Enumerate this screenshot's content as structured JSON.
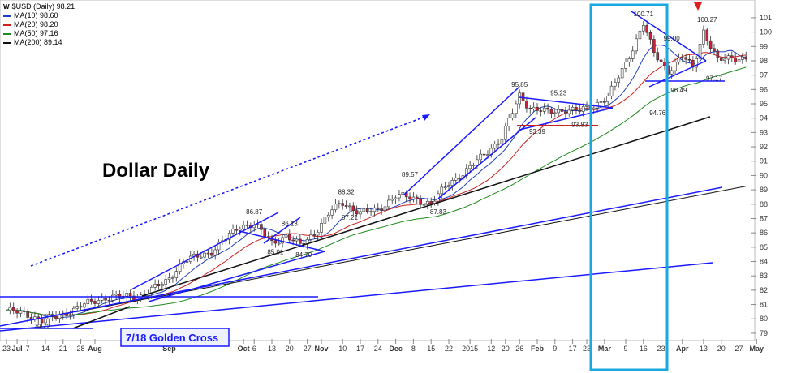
{
  "chart_data": {
    "type": "candlestick",
    "symbol_label": "$USD (Daily) 98.21",
    "title": "Dollar Daily",
    "legend": [
      {
        "name": "MA(10) 98.60",
        "color": "#1f3fbf"
      },
      {
        "name": "MA(20) 98.20",
        "color": "#cc2222"
      },
      {
        "name": "MA(50) 97.16",
        "color": "#1f8a1f"
      },
      {
        "name": "MA(200) 89.14",
        "color": "#111111"
      }
    ],
    "y_ticks": [
      79,
      80,
      81,
      82,
      83,
      84,
      85,
      86,
      87,
      88,
      89,
      90,
      91,
      92,
      93,
      94,
      95,
      96,
      97,
      98,
      99,
      100,
      101
    ],
    "ylim": [
      78.6,
      101.9
    ],
    "x_ticks": [
      {
        "label": "23",
        "i": 0
      },
      {
        "label": "Jul",
        "i": 3
      },
      {
        "label": "7",
        "i": 6
      },
      {
        "label": "14",
        "i": 11
      },
      {
        "label": "21",
        "i": 16
      },
      {
        "label": "28",
        "i": 21
      },
      {
        "label": "Aug",
        "i": 25
      },
      {
        "label": "Sep",
        "i": 46
      },
      {
        "label": "Oct",
        "i": 67
      },
      {
        "label": "6",
        "i": 70
      },
      {
        "label": "13",
        "i": 75
      },
      {
        "label": "20",
        "i": 80
      },
      {
        "label": "27",
        "i": 85
      },
      {
        "label": "Nov",
        "i": 89
      },
      {
        "label": "10",
        "i": 95
      },
      {
        "label": "17",
        "i": 100
      },
      {
        "label": "24",
        "i": 105
      },
      {
        "label": "Dec",
        "i": 110
      },
      {
        "label": "8",
        "i": 115
      },
      {
        "label": "15",
        "i": 120
      },
      {
        "label": "22",
        "i": 125
      },
      {
        "label": "2015",
        "i": 131
      },
      {
        "label": "12",
        "i": 137
      },
      {
        "label": "20",
        "i": 141
      },
      {
        "label": "26",
        "i": 145
      },
      {
        "label": "Feb",
        "i": 150
      },
      {
        "label": "9",
        "i": 155
      },
      {
        "label": "17",
        "i": 160
      },
      {
        "label": "23",
        "i": 164
      },
      {
        "label": "Mar",
        "i": 169
      },
      {
        "label": "9",
        "i": 175
      },
      {
        "label": "16",
        "i": 180
      },
      {
        "label": "23",
        "i": 185
      },
      {
        "label": "Apr",
        "i": 191
      },
      {
        "label": "13",
        "i": 197
      },
      {
        "label": "20",
        "i": 202
      },
      {
        "label": "27",
        "i": 207
      },
      {
        "label": "May",
        "i": 212
      }
    ],
    "n_bars": 210,
    "anchors": [
      [
        0,
        80.6
      ],
      [
        6,
        80.3
      ],
      [
        10,
        79.9
      ],
      [
        15,
        80.2
      ],
      [
        21,
        80.9
      ],
      [
        28,
        81.5
      ],
      [
        38,
        81.6
      ],
      [
        45,
        82.6
      ],
      [
        50,
        84.0
      ],
      [
        58,
        84.7
      ],
      [
        66,
        86.5
      ],
      [
        70,
        86.6
      ],
      [
        75,
        85.3
      ],
      [
        79,
        85.8
      ],
      [
        83,
        85.1
      ],
      [
        87,
        86.0
      ],
      [
        92,
        87.6
      ],
      [
        95,
        88.1
      ],
      [
        100,
        87.4
      ],
      [
        105,
        87.6
      ],
      [
        110,
        88.6
      ],
      [
        115,
        88.4
      ],
      [
        120,
        88.0
      ],
      [
        125,
        89.5
      ],
      [
        130,
        90.3
      ],
      [
        135,
        91.5
      ],
      [
        140,
        92.6
      ],
      [
        145,
        95.6
      ],
      [
        148,
        94.7
      ],
      [
        153,
        94.4
      ],
      [
        158,
        94.6
      ],
      [
        162,
        94.5
      ],
      [
        166,
        94.9
      ],
      [
        170,
        95.5
      ],
      [
        175,
        97.8
      ],
      [
        180,
        100.6
      ],
      [
        183,
        98.5
      ],
      [
        187,
        97.3
      ],
      [
        191,
        98.3
      ],
      [
        194,
        97.5
      ],
      [
        197,
        100.1
      ],
      [
        201,
        98.0
      ],
      [
        205,
        98.2
      ]
    ],
    "annotations": [
      {
        "text": "79.72",
        "i": 10,
        "y": 79.3
      },
      {
        "text": "86.87",
        "i": 70,
        "y": 87.3
      },
      {
        "text": "86.13",
        "i": 80,
        "y": 86.5
      },
      {
        "text": "85.01",
        "i": 76,
        "y": 84.5
      },
      {
        "text": "84.79",
        "i": 84,
        "y": 84.3
      },
      {
        "text": "88.32",
        "i": 96,
        "y": 88.7
      },
      {
        "text": "87.21",
        "i": 97,
        "y": 86.9
      },
      {
        "text": "89.57",
        "i": 114,
        "y": 89.9
      },
      {
        "text": "87.83",
        "i": 122,
        "y": 87.3
      },
      {
        "text": "95.85",
        "i": 145,
        "y": 96.2
      },
      {
        "text": "95.23",
        "i": 156,
        "y": 95.6
      },
      {
        "text": "93.39",
        "i": 150,
        "y": 92.9
      },
      {
        "text": "93.83",
        "i": 162,
        "y": 93.4
      },
      {
        "text": "100.71",
        "i": 180,
        "y": 101.1
      },
      {
        "text": "94.76",
        "i": 184,
        "y": 94.2
      },
      {
        "text": "99.00",
        "i": 188,
        "y": 99.4
      },
      {
        "text": "96.49",
        "i": 190,
        "y": 95.8
      },
      {
        "text": "100.27",
        "i": 198,
        "y": 100.7
      },
      {
        "text": "97.17",
        "i": 200,
        "y": 96.6
      }
    ],
    "callout": "7/18 Golden Cross"
  }
}
